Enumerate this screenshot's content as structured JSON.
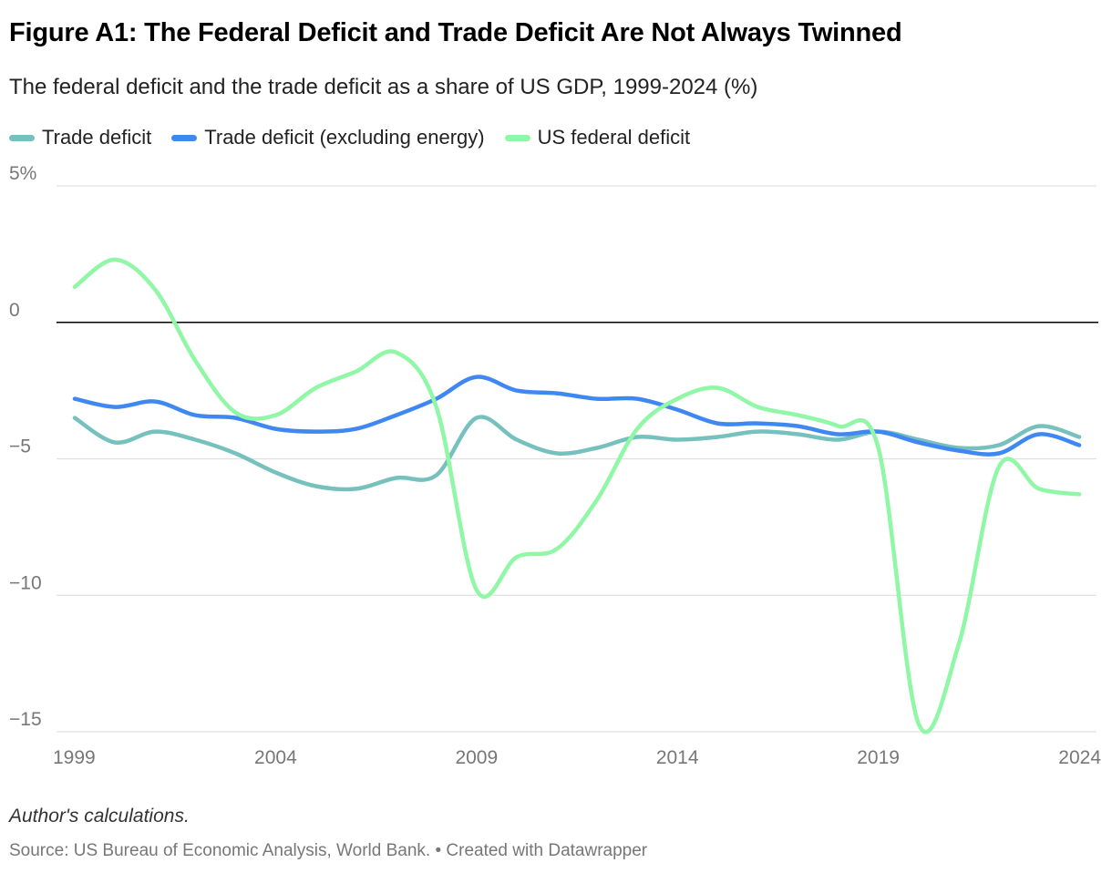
{
  "header": {
    "title": "Figure A1: The Federal Deficit and Trade Deficit Are Not Always Twinned",
    "subtitle": "The federal deficit and the trade deficit as a share of US GDP, 1999-2024 (%)"
  },
  "footer": {
    "note": "Author's calculations.",
    "source": "Source: US Bureau of Economic Analysis, World Bank. • Created with Datawrapper"
  },
  "chart_data": {
    "type": "line",
    "title": "Figure A1: The Federal Deficit and Trade Deficit Are Not Always Twinned",
    "subtitle": "The federal deficit and the trade deficit as a share of US GDP, 1999-2024 (%)",
    "xlabel": "",
    "ylabel": "",
    "xlim": [
      1999,
      2024
    ],
    "ylim": [
      -15,
      5
    ],
    "x_ticks": [
      1999,
      2004,
      2009,
      2014,
      2019,
      2024
    ],
    "x_tick_labels": [
      "1999",
      "2004",
      "2009",
      "2014",
      "2019",
      "2024"
    ],
    "y_ticks": [
      5,
      0,
      -5,
      -10,
      -15
    ],
    "y_tick_labels": [
      "5%",
      "0",
      "−5",
      "−10",
      "−15"
    ],
    "grid": true,
    "zero_line": true,
    "legend_position": "top-left",
    "x": [
      1999,
      2000,
      2001,
      2002,
      2003,
      2004,
      2005,
      2006,
      2007,
      2008,
      2009,
      2010,
      2011,
      2012,
      2013,
      2014,
      2015,
      2016,
      2017,
      2018,
      2019,
      2020,
      2021,
      2022,
      2023,
      2024
    ],
    "series": [
      {
        "name": "Trade deficit",
        "color": "#76c1bd",
        "values": [
          -3.5,
          -4.4,
          -4.0,
          -4.3,
          -4.8,
          -5.5,
          -6.0,
          -6.1,
          -5.7,
          -5.6,
          -3.5,
          -4.3,
          -4.8,
          -4.6,
          -4.2,
          -4.3,
          -4.2,
          -4.0,
          -4.1,
          -4.3,
          -4.0,
          -4.3,
          -4.6,
          -4.5,
          -3.8,
          -4.2
        ]
      },
      {
        "name": "Trade deficit (excluding energy)",
        "color": "#3f88f2",
        "values": [
          -2.8,
          -3.1,
          -2.9,
          -3.4,
          -3.5,
          -3.9,
          -4.0,
          -3.9,
          -3.4,
          -2.8,
          -2.0,
          -2.5,
          -2.6,
          -2.8,
          -2.8,
          -3.2,
          -3.7,
          -3.7,
          -3.8,
          -4.1,
          -4.0,
          -4.4,
          -4.7,
          -4.8,
          -4.1,
          -4.5
        ]
      },
      {
        "name": "US federal deficit",
        "color": "#8ff7a6",
        "values": [
          1.3,
          2.3,
          1.2,
          -1.4,
          -3.3,
          -3.4,
          -2.4,
          -1.8,
          -1.1,
          -3.1,
          -9.8,
          -8.6,
          -8.3,
          -6.5,
          -3.9,
          -2.8,
          -2.4,
          -3.1,
          -3.4,
          -3.8,
          -4.6,
          -14.7,
          -11.8,
          -5.3,
          -6.1,
          -6.3
        ]
      }
    ]
  }
}
